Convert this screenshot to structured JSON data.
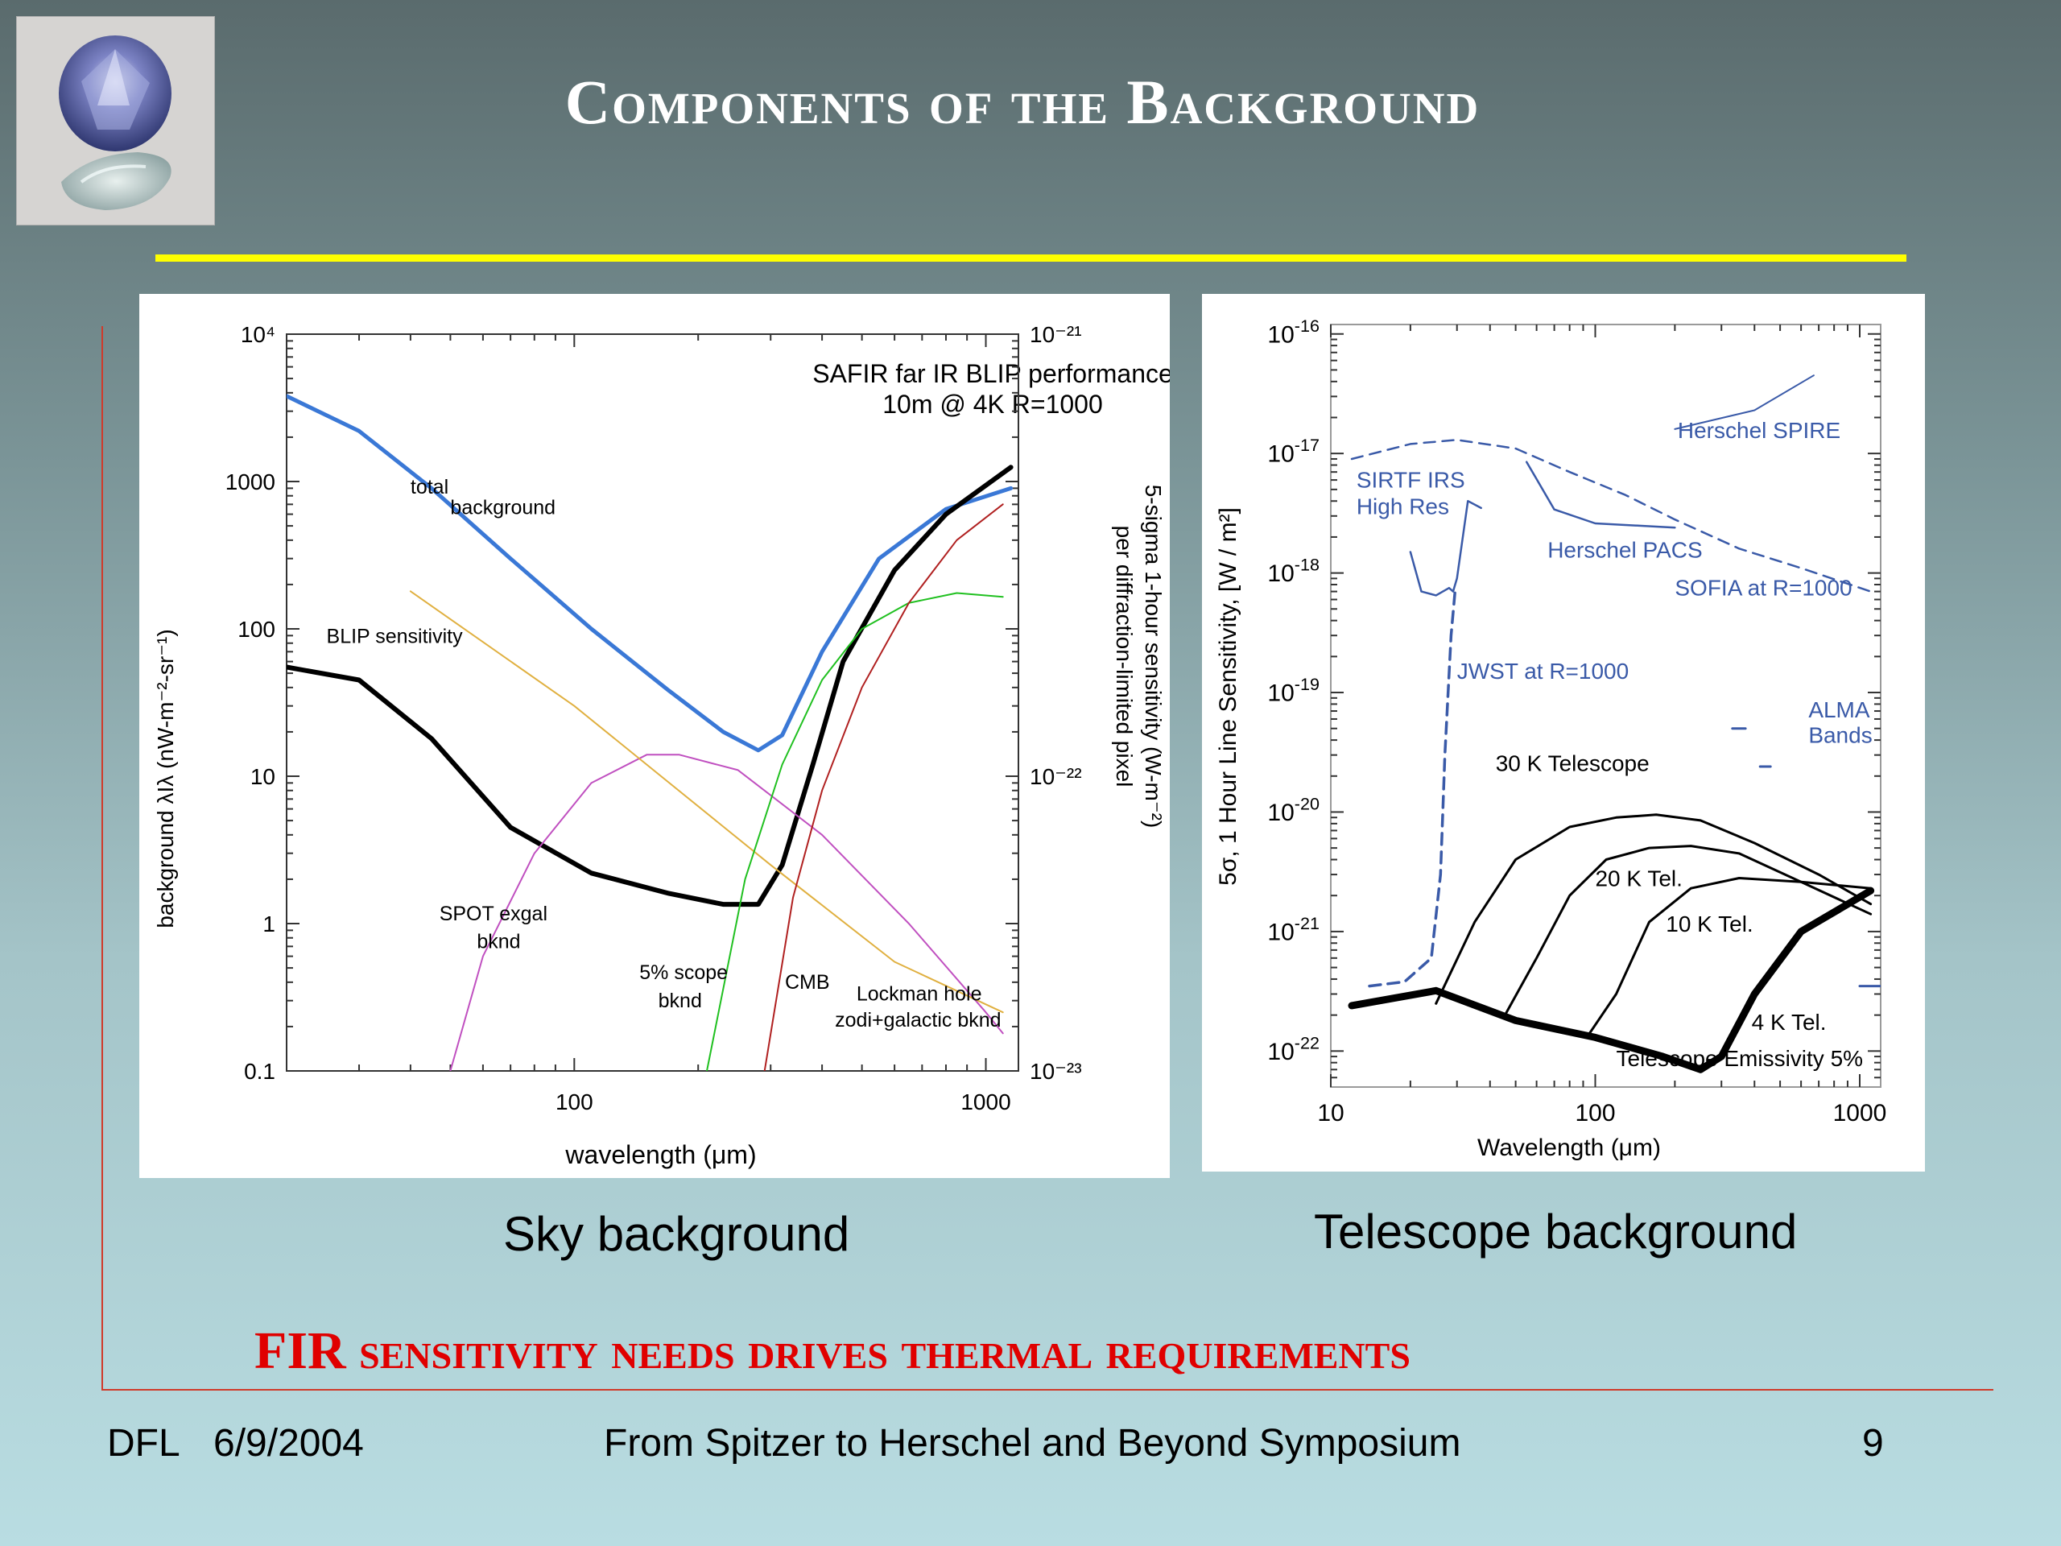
{
  "slide": {
    "title": "Components of the Background",
    "headline": "FIR sensitivity needs drives thermal requirements",
    "caption_left": "Sky background",
    "caption_right": "Telescope background",
    "footer_author": "DFL",
    "footer_date": "6/9/2004",
    "footer_event": "From Spitzer to Herschel and Beyond Symposium",
    "footer_page": "9",
    "colors": {
      "title": "#ffffff",
      "rule": "#ffff00",
      "headline": "#e00000",
      "accent_line": "#d03a2a"
    }
  },
  "chart_data": [
    {
      "type": "line",
      "log_x": true,
      "log_y": true,
      "title": "SAFIR far IR BLIP performance",
      "subtitle": "10m @ 4K R=1000",
      "xlabel": "wavelength (μm)",
      "ylabel": "background λIλ (nW-m⁻²-sr⁻¹)",
      "ylabel_right_line1": "5-sigma 1-hour sensitivity (W-m⁻²)",
      "ylabel_right_line2": "per diffraction-limited pixel",
      "xlim": [
        20,
        1200
      ],
      "ylim": [
        0.1,
        10000
      ],
      "x_ticks": [
        {
          "v": 100,
          "label": "100"
        },
        {
          "v": 1000,
          "label": "1000"
        }
      ],
      "y_ticks": [
        {
          "v": 10000,
          "label": "10⁴"
        },
        {
          "v": 1000,
          "label": "1000"
        },
        {
          "v": 100,
          "label": "100"
        },
        {
          "v": 10,
          "label": "10"
        },
        {
          "v": 1,
          "label": "1"
        },
        {
          "v": 0.1,
          "label": "0.1"
        }
      ],
      "y_right_ticks": [
        {
          "v": 10000,
          "label": "10⁻²¹"
        },
        {
          "v": 10,
          "label": "10⁻²²"
        },
        {
          "v": 0.1,
          "label": "10⁻²³"
        }
      ],
      "series": [
        {
          "name": "total background",
          "color": "#3a78d6",
          "width": 5,
          "x": [
            20,
            30,
            45,
            70,
            110,
            170,
            230,
            280,
            320,
            400,
            550,
            800,
            1150
          ],
          "y": [
            3800,
            2200,
            900,
            300,
            100,
            38,
            20,
            15,
            19,
            70,
            300,
            650,
            900
          ]
        },
        {
          "name": "BLIP sensitivity",
          "color": "#000000",
          "width": 6,
          "x": [
            20,
            30,
            45,
            70,
            110,
            170,
            230,
            280,
            320,
            380,
            450,
            600,
            800,
            1150
          ],
          "y": [
            55,
            45,
            18,
            4.5,
            2.2,
            1.6,
            1.35,
            1.35,
            2.5,
            12,
            60,
            250,
            600,
            1250
          ]
        },
        {
          "name": "SPOT exgal bknd",
          "color": "#c050c0",
          "width": 2,
          "x": [
            50,
            60,
            80,
            110,
            150,
            180,
            250,
            400,
            650,
            1000,
            1100
          ],
          "y": [
            0.1,
            0.6,
            3,
            9,
            14,
            14,
            11,
            4,
            1,
            0.25,
            0.18
          ]
        },
        {
          "name": "Lockman hole zodi+galactic bknd",
          "color": "#e0b040",
          "width": 2,
          "x": [
            40,
            100,
            300,
            600,
            1100
          ],
          "y": [
            180,
            30,
            2.5,
            0.55,
            0.25
          ]
        },
        {
          "name": "5% scope bknd",
          "color": "#20c020",
          "width": 2,
          "x": [
            210,
            260,
            320,
            400,
            500,
            650,
            850,
            1100
          ],
          "y": [
            0.1,
            2,
            12,
            45,
            100,
            150,
            175,
            165
          ]
        },
        {
          "name": "CMB",
          "color": "#b02020",
          "width": 2,
          "x": [
            290,
            340,
            400,
            500,
            650,
            850,
            1100
          ],
          "y": [
            0.1,
            1.5,
            8,
            40,
            150,
            400,
            700
          ]
        }
      ],
      "annotations": [
        {
          "text": "total",
          "x": 40,
          "y": 830
        },
        {
          "text": "background",
          "x": 50,
          "y": 600
        },
        {
          "text": "BLIP sensitivity",
          "x": 25,
          "y": 80
        },
        {
          "text": "SPOT exgal",
          "x": 47,
          "y": 1.05
        },
        {
          "text": "bknd",
          "x": 58,
          "y": 0.68
        },
        {
          "text": "5% scope",
          "x": 144,
          "y": 0.42
        },
        {
          "text": "bknd",
          "x": 160,
          "y": 0.27
        },
        {
          "text": "CMB",
          "x": 325,
          "y": 0.36
        },
        {
          "text": "Lockman hole",
          "x": 485,
          "y": 0.3
        },
        {
          "text": "zodi+galactic bknd",
          "x": 430,
          "y": 0.2
        }
      ]
    },
    {
      "type": "line",
      "log_x": true,
      "log_y": true,
      "xlabel": "Wavelength (μm)",
      "ylabel": "5σ, 1 Hour Line Sensitivity, [W / m²]",
      "xlim": [
        10,
        1200
      ],
      "ylim": [
        5e-23,
        1.2e-16
      ],
      "x_ticks": [
        {
          "v": 10,
          "label": "10"
        },
        {
          "v": 100,
          "label": "100"
        },
        {
          "v": 1000,
          "label": "1000"
        }
      ],
      "y_ticks": [
        {
          "v": 1e-16,
          "label": "10",
          "exp": "-16"
        },
        {
          "v": 1e-17,
          "label": "10",
          "exp": "-17"
        },
        {
          "v": 1e-18,
          "label": "10",
          "exp": "-18"
        },
        {
          "v": 1e-19,
          "label": "10",
          "exp": "-19"
        },
        {
          "v": 1e-20,
          "label": "10",
          "exp": "-20"
        },
        {
          "v": 1e-21,
          "label": "10",
          "exp": "-21"
        },
        {
          "v": 1e-22,
          "label": "10",
          "exp": "-22"
        }
      ],
      "series": [
        {
          "name": "Herschel SPIRE",
          "color": "#3a5aa8",
          "width": 2,
          "x": [
            200,
            400,
            670
          ],
          "y": [
            1.6e-17,
            2.3e-17,
            4.5e-17
          ]
        },
        {
          "name": "SIRTF IRS High Res",
          "color": "#3a5aa8",
          "width": 2.5,
          "x": [
            20,
            22,
            25,
            28,
            29,
            30,
            33,
            37
          ],
          "y": [
            1.5e-18,
            7e-19,
            6.5e-19,
            7.5e-19,
            7e-19,
            9e-19,
            4e-18,
            3.5e-18
          ]
        },
        {
          "name": "Herschel PACS",
          "color": "#3a5aa8",
          "width": 2.5,
          "x": [
            55,
            70,
            100,
            200
          ],
          "y": [
            8.5e-18,
            3.4e-18,
            2.6e-18,
            2.4e-18
          ]
        },
        {
          "name": "SOFIA at R=1000",
          "color": "#3a5aa8",
          "width": 2.5,
          "dash": "14 9",
          "x": [
            12,
            20,
            30,
            50,
            80,
            130,
            200,
            350,
            600,
            1100
          ],
          "y": [
            9e-18,
            1.2e-17,
            1.3e-17,
            1.1e-17,
            7e-18,
            4.5e-18,
            2.8e-18,
            1.6e-18,
            1.1e-18,
            7e-19
          ]
        },
        {
          "name": "JWST at R=1000",
          "color": "#3a5aa8",
          "width": 3.5,
          "dash": "14 9",
          "x": [
            14,
            19,
            24,
            26,
            27,
            28.5,
            29.5
          ],
          "y": [
            3.5e-22,
            3.8e-22,
            6e-22,
            3e-21,
            3e-20,
            3e-19,
            7e-19
          ]
        },
        {
          "name": "ALMA Bands",
          "color": "#3a5aa8",
          "width": 3,
          "x": [
            330,
            370
          ],
          "y": [
            5e-20,
            5e-20
          ]
        },
        {
          "name": "ALMA Bands 2",
          "color": "#3a5aa8",
          "width": 3,
          "x": [
            420,
            460
          ],
          "y": [
            2.4e-20,
            2.4e-20
          ]
        },
        {
          "name": "ALMA Bands 3",
          "color": "#3a5aa8",
          "width": 3,
          "x": [
            1000,
            1200
          ],
          "y": [
            3.5e-22,
            3.5e-22
          ]
        },
        {
          "name": "30 K Telescope",
          "color": "#000000",
          "width": 3,
          "x": [
            25,
            35,
            50,
            80,
            120,
            170,
            250,
            400,
            700,
            1100
          ],
          "y": [
            2.5e-22,
            1.2e-21,
            4e-21,
            7.5e-21,
            9e-21,
            9.5e-21,
            8.5e-21,
            5.5e-21,
            3e-21,
            1.7e-21
          ]
        },
        {
          "name": "20 K Tel.",
          "color": "#000000",
          "width": 3,
          "x": [
            45,
            60,
            80,
            110,
            160,
            230,
            350,
            600,
            1100
          ],
          "y": [
            1.9e-22,
            6e-22,
            2e-21,
            4e-21,
            5e-21,
            5.2e-21,
            4.5e-21,
            2.6e-21,
            1.4e-21
          ]
        },
        {
          "name": "10 K Tel.",
          "color": "#000000",
          "width": 3,
          "x": [
            95,
            120,
            160,
            230,
            350,
            600,
            1100
          ],
          "y": [
            1.4e-22,
            3e-22,
            1.2e-21,
            2.3e-21,
            2.8e-21,
            2.6e-21,
            2.3e-21
          ]
        },
        {
          "name": "4 K Tel.",
          "color": "#000000",
          "width": 9,
          "x": [
            12,
            25,
            50,
            100,
            180,
            250,
            300,
            400,
            600,
            1100
          ],
          "y": [
            2.4e-22,
            3.2e-22,
            1.8e-22,
            1.3e-22,
            9e-23,
            7e-23,
            9e-23,
            3e-22,
            1e-21,
            2.2e-21
          ]
        }
      ],
      "annotations": [
        {
          "text": "Herschel SPIRE",
          "x": 205,
          "y": 1.35e-17,
          "color": "#3a5aa8"
        },
        {
          "text": "SIRTF IRS",
          "x": 12.5,
          "y": 5.2e-18,
          "color": "#3a5aa8"
        },
        {
          "text": "High Res",
          "x": 12.5,
          "y": 3.1e-18,
          "color": "#3a5aa8"
        },
        {
          "text": "Herschel PACS",
          "x": 66,
          "y": 1.35e-18,
          "color": "#3a5aa8"
        },
        {
          "text": "SOFIA at R=1000",
          "x": 200,
          "y": 6.5e-19,
          "color": "#3a5aa8"
        },
        {
          "text": "JWST at R=1000",
          "x": 30,
          "y": 1.3e-19,
          "color": "#3a5aa8"
        },
        {
          "text": "ALMA",
          "x": 640,
          "y": 6.2e-20,
          "color": "#3a5aa8"
        },
        {
          "text": "Bands",
          "x": 640,
          "y": 3.8e-20,
          "color": "#3a5aa8"
        },
        {
          "text": "30 K Telescope",
          "x": 42,
          "y": 2.2e-20,
          "color": "#000000"
        },
        {
          "text": "20 K Tel.",
          "x": 100,
          "y": 2.4e-21,
          "color": "#000000"
        },
        {
          "text": "10 K Tel.",
          "x": 185,
          "y": 1e-21,
          "color": "#000000"
        },
        {
          "text": "4 K Tel.",
          "x": 390,
          "y": 1.5e-22,
          "color": "#000000"
        },
        {
          "text": "Telescope Emissivity 5%",
          "x": 120,
          "y": 7.5e-23,
          "color": "#000000"
        }
      ]
    }
  ]
}
